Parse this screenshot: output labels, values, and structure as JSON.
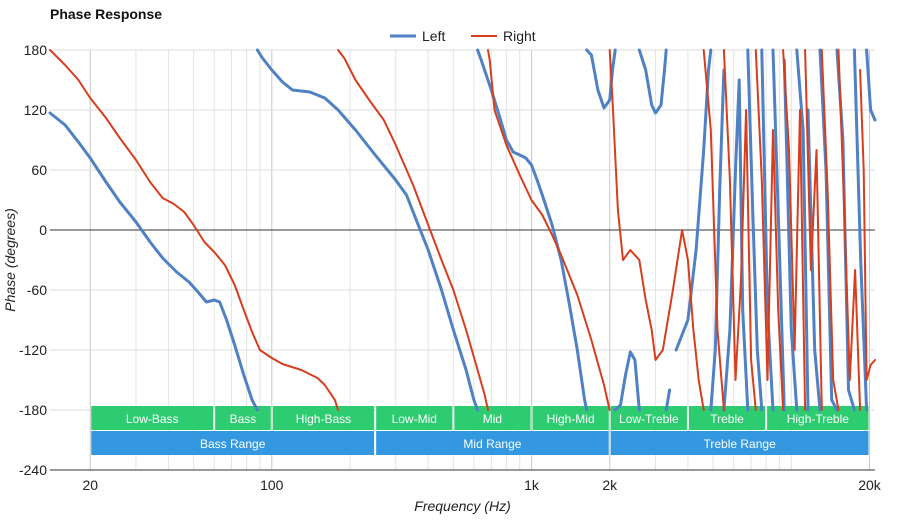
{
  "chart_data": {
    "type": "line",
    "title": "Phase Response",
    "xlabel": "Frequency (Hz)",
    "ylabel": "Phase (degrees)",
    "x_scale": "log",
    "xlim": [
      14,
      21000
    ],
    "ylim": [
      -240,
      180
    ],
    "x_ticks": [
      {
        "value": 20,
        "label": "20"
      },
      {
        "value": 100,
        "label": "100"
      },
      {
        "value": 1000,
        "label": "1k"
      },
      {
        "value": 2000,
        "label": "2k"
      },
      {
        "value": 20000,
        "label": "20k"
      }
    ],
    "y_ticks": [
      180,
      120,
      60,
      0,
      -60,
      -120,
      -180,
      -240
    ],
    "minor_grid_x": [
      30,
      40,
      50,
      60,
      70,
      80,
      90,
      200,
      300,
      400,
      500,
      600,
      700,
      800,
      900,
      3000,
      4000,
      5000,
      6000,
      7000,
      8000,
      9000,
      10000
    ],
    "legend": {
      "position": "top-center",
      "entries": [
        "Left",
        "Right"
      ]
    },
    "series": [
      {
        "name": "Left",
        "color": "#4f81c4",
        "points": [
          [
            14,
            117
          ],
          [
            16,
            105
          ],
          [
            18,
            88
          ],
          [
            20,
            72
          ],
          [
            23,
            48
          ],
          [
            26,
            28
          ],
          [
            30,
            8
          ],
          [
            34,
            -12
          ],
          [
            38,
            -28
          ],
          [
            43,
            -42
          ],
          [
            48,
            -52
          ],
          [
            52,
            -62
          ],
          [
            56,
            -72
          ],
          [
            60,
            -70
          ],
          [
            63,
            -72
          ],
          [
            67,
            -90
          ],
          [
            72,
            -115
          ],
          [
            78,
            -145
          ],
          [
            84,
            -170
          ],
          [
            88,
            -180
          ],
          null,
          [
            88,
            180
          ],
          [
            92,
            172
          ],
          [
            100,
            160
          ],
          [
            110,
            148
          ],
          [
            120,
            140
          ],
          [
            140,
            138
          ],
          [
            160,
            132
          ],
          [
            180,
            120
          ],
          [
            210,
            100
          ],
          [
            250,
            75
          ],
          [
            300,
            50
          ],
          [
            330,
            35
          ],
          [
            360,
            10
          ],
          [
            400,
            -20
          ],
          [
            450,
            -60
          ],
          [
            500,
            -100
          ],
          [
            560,
            -140
          ],
          [
            600,
            -170
          ],
          [
            620,
            -180
          ],
          null,
          [
            620,
            180
          ],
          [
            640,
            170
          ],
          [
            700,
            140
          ],
          [
            760,
            110
          ],
          [
            800,
            90
          ],
          [
            850,
            78
          ],
          [
            900,
            75
          ],
          [
            950,
            72
          ],
          [
            1000,
            65
          ],
          [
            1050,
            50
          ],
          [
            1100,
            35
          ],
          [
            1200,
            5
          ],
          [
            1300,
            -30
          ],
          [
            1400,
            -75
          ],
          [
            1500,
            -120
          ],
          [
            1600,
            -170
          ],
          [
            1630,
            -180
          ],
          null,
          [
            1630,
            180
          ],
          [
            1700,
            175
          ],
          [
            1800,
            140
          ],
          [
            1900,
            122
          ],
          [
            2000,
            130
          ],
          [
            2050,
            160
          ],
          [
            2100,
            180
          ],
          null,
          [
            2100,
            -180
          ],
          [
            2200,
            -175
          ],
          [
            2300,
            -145
          ],
          [
            2400,
            -122
          ],
          [
            2500,
            -130
          ],
          [
            2600,
            -180
          ],
          null,
          [
            2600,
            180
          ],
          [
            2750,
            160
          ],
          [
            2900,
            125
          ],
          [
            3000,
            117
          ],
          [
            3150,
            125
          ],
          [
            3250,
            160
          ],
          [
            3300,
            180
          ],
          null,
          [
            3300,
            -180
          ],
          [
            3350,
            -170
          ],
          [
            3400,
            -160
          ],
          null,
          [
            3600,
            -120
          ],
          [
            4000,
            -90
          ],
          [
            4300,
            -20
          ],
          [
            4600,
            80
          ],
          [
            4800,
            160
          ],
          [
            4900,
            180
          ],
          null,
          [
            4900,
            -180
          ],
          [
            5100,
            -120
          ],
          [
            5300,
            40
          ],
          [
            5500,
            160
          ],
          null,
          [
            5500,
            -180
          ],
          [
            5800,
            -100
          ],
          [
            6100,
            60
          ],
          [
            6300,
            150
          ],
          [
            6500,
            -80
          ],
          [
            6800,
            -180
          ],
          null,
          [
            6800,
            180
          ],
          [
            7100,
            20
          ],
          [
            7400,
            -120
          ],
          [
            7700,
            -180
          ],
          null,
          [
            7700,
            180
          ],
          [
            8100,
            -80
          ],
          [
            8500,
            -180
          ],
          null,
          [
            8500,
            180
          ],
          [
            9000,
            -20
          ],
          [
            9400,
            -180
          ],
          null,
          [
            9400,
            170
          ],
          [
            10000,
            -100
          ],
          [
            10500,
            -180
          ],
          null,
          [
            10500,
            180
          ],
          [
            11100,
            100
          ],
          [
            11600,
            -180
          ],
          null,
          [
            11600,
            120
          ],
          [
            12300,
            -120
          ],
          [
            12900,
            -180
          ],
          null,
          [
            12900,
            180
          ],
          [
            13600,
            60
          ],
          [
            14300,
            -170
          ],
          [
            15000,
            -180
          ],
          null,
          [
            15000,
            180
          ],
          [
            15800,
            90
          ],
          [
            16600,
            -160
          ],
          [
            17500,
            -180
          ],
          null,
          [
            17500,
            180
          ],
          [
            18500,
            -30
          ],
          [
            19500,
            -180
          ],
          null,
          [
            19500,
            180
          ],
          [
            20200,
            120
          ],
          [
            21000,
            110
          ]
        ]
      },
      {
        "name": "Right",
        "color": "#d63e1e",
        "points": [
          [
            14,
            180
          ],
          [
            16,
            165
          ],
          [
            18,
            150
          ],
          [
            20,
            132
          ],
          [
            23,
            112
          ],
          [
            26,
            92
          ],
          [
            30,
            70
          ],
          [
            34,
            48
          ],
          [
            38,
            32
          ],
          [
            42,
            26
          ],
          [
            46,
            18
          ],
          [
            50,
            5
          ],
          [
            55,
            -12
          ],
          [
            60,
            -22
          ],
          [
            66,
            -35
          ],
          [
            72,
            -55
          ],
          [
            78,
            -80
          ],
          [
            84,
            -102
          ],
          [
            90,
            -120
          ],
          [
            100,
            -128
          ],
          [
            110,
            -134
          ],
          [
            130,
            -140
          ],
          [
            150,
            -148
          ],
          [
            160,
            -155
          ],
          [
            175,
            -170
          ],
          [
            180,
            -180
          ],
          null,
          [
            180,
            180
          ],
          [
            190,
            172
          ],
          [
            210,
            150
          ],
          [
            240,
            128
          ],
          [
            270,
            110
          ],
          [
            300,
            85
          ],
          [
            350,
            45
          ],
          [
            400,
            5
          ],
          [
            450,
            -30
          ],
          [
            500,
            -60
          ],
          [
            560,
            -100
          ],
          [
            620,
            -140
          ],
          [
            660,
            -165
          ],
          [
            680,
            -180
          ],
          null,
          [
            680,
            180
          ],
          [
            690,
            170
          ],
          [
            720,
            120
          ],
          [
            800,
            85
          ],
          [
            900,
            55
          ],
          [
            1000,
            30
          ],
          [
            1100,
            15
          ],
          [
            1200,
            -5
          ],
          [
            1300,
            -25
          ],
          [
            1500,
            -65
          ],
          [
            1700,
            -110
          ],
          [
            1900,
            -155
          ],
          [
            2000,
            -180
          ],
          null,
          [
            2000,
            180
          ],
          [
            2050,
            130
          ],
          [
            2150,
            20
          ],
          [
            2250,
            -30
          ],
          [
            2400,
            -20
          ],
          [
            2600,
            -30
          ],
          [
            2750,
            -70
          ],
          [
            2900,
            -100
          ],
          [
            3000,
            -130
          ],
          [
            3200,
            -120
          ],
          [
            3500,
            -60
          ],
          [
            3800,
            0
          ],
          [
            4000,
            -30
          ],
          [
            4200,
            -100
          ],
          [
            4400,
            -150
          ],
          [
            4600,
            -180
          ],
          null,
          [
            4600,
            180
          ],
          [
            4900,
            100
          ],
          [
            5200,
            -100
          ],
          [
            5500,
            -180
          ],
          null,
          [
            5500,
            180
          ],
          [
            5800,
            50
          ],
          [
            6100,
            -150
          ],
          [
            6400,
            -50
          ],
          [
            6700,
            120
          ],
          [
            7000,
            -130
          ],
          [
            7300,
            -180
          ],
          null,
          [
            7300,
            180
          ],
          [
            7700,
            50
          ],
          [
            8100,
            -150
          ],
          [
            8500,
            100
          ],
          [
            8900,
            -80
          ],
          [
            9300,
            -180
          ],
          null,
          [
            9300,
            180
          ],
          [
            9800,
            80
          ],
          [
            10300,
            -120
          ],
          [
            10800,
            120
          ],
          [
            11300,
            -180
          ],
          null,
          [
            11300,
            180
          ],
          [
            11900,
            -40
          ],
          [
            12500,
            80
          ],
          [
            13100,
            -180
          ],
          null,
          [
            13100,
            180
          ],
          [
            13800,
            40
          ],
          [
            14500,
            -150
          ],
          [
            15200,
            -180
          ],
          null,
          [
            15200,
            180
          ],
          [
            16000,
            20
          ],
          [
            16800,
            -150
          ],
          [
            17600,
            -40
          ],
          [
            18400,
            -180
          ],
          null,
          [
            18400,
            160
          ],
          [
            19000,
            60
          ],
          [
            19500,
            -150
          ],
          [
            20200,
            -135
          ],
          [
            21000,
            -130
          ]
        ]
      }
    ],
    "band_rows": [
      [
        {
          "label": "Low-Bass",
          "from": 20,
          "to": 60,
          "color": "#2ecc71"
        },
        {
          "label": "Bass",
          "from": 60,
          "to": 100,
          "color": "#2ecc71"
        },
        {
          "label": "High-Bass",
          "from": 100,
          "to": 250,
          "color": "#2ecc71"
        },
        {
          "label": "Low-Mid",
          "from": 250,
          "to": 500,
          "color": "#2ecc71"
        },
        {
          "label": "Mid",
          "from": 500,
          "to": 1000,
          "color": "#2ecc71"
        },
        {
          "label": "High-Mid",
          "from": 1000,
          "to": 2000,
          "color": "#2ecc71"
        },
        {
          "label": "Low-Treble",
          "from": 2000,
          "to": 4000,
          "color": "#2ecc71"
        },
        {
          "label": "Treble",
          "from": 4000,
          "to": 8000,
          "color": "#2ecc71"
        },
        {
          "label": "High-Treble",
          "from": 8000,
          "to": 20000,
          "color": "#2ecc71"
        }
      ],
      [
        {
          "label": "Bass Range",
          "from": 20,
          "to": 250,
          "color": "#3498e0"
        },
        {
          "label": "Mid Range",
          "from": 250,
          "to": 2000,
          "color": "#3498e0"
        },
        {
          "label": "Treble Range",
          "from": 2000,
          "to": 20000,
          "color": "#3498e0"
        }
      ]
    ]
  }
}
